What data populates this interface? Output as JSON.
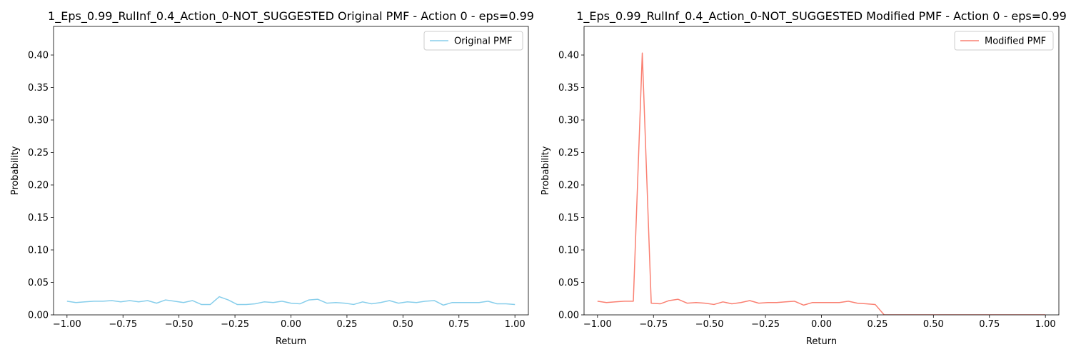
{
  "chart_data": [
    {
      "type": "line",
      "title": "1_Eps_0.99_RulInf_0.4_Action_0-NOT_SUGGESTED Original PMF - Action 0 - eps=0.99",
      "xlabel": "Return",
      "ylabel": "Probability",
      "xlim": [
        -1.06,
        1.06
      ],
      "ylim": [
        0,
        0.444
      ],
      "xticks": [
        -1.0,
        -0.75,
        -0.5,
        -0.25,
        0.0,
        0.25,
        0.5,
        0.75,
        1.0
      ],
      "xtick_labels": [
        "−1.00",
        "−0.75",
        "−0.50",
        "−0.25",
        "0.00",
        "0.25",
        "0.50",
        "0.75",
        "1.00"
      ],
      "yticks": [
        0.0,
        0.05,
        0.1,
        0.15,
        0.2,
        0.25,
        0.3,
        0.35,
        0.4
      ],
      "ytick_labels": [
        "0.00",
        "0.05",
        "0.10",
        "0.15",
        "0.20",
        "0.25",
        "0.30",
        "0.35",
        "0.40"
      ],
      "legend_position": "top-right",
      "series": [
        {
          "name": "Original PMF",
          "color": "#87ceeb",
          "x": [
            -1.0,
            -0.96,
            -0.92,
            -0.88,
            -0.84,
            -0.8,
            -0.76,
            -0.72,
            -0.68,
            -0.64,
            -0.6,
            -0.56,
            -0.52,
            -0.48,
            -0.44,
            -0.4,
            -0.36,
            -0.32,
            -0.28,
            -0.24,
            -0.2,
            -0.16,
            -0.12,
            -0.08,
            -0.04,
            0.0,
            0.04,
            0.08,
            0.12,
            0.16,
            0.2,
            0.24,
            0.28,
            0.32,
            0.36,
            0.4,
            0.44,
            0.48,
            0.52,
            0.56,
            0.6,
            0.64,
            0.68,
            0.72,
            0.76,
            0.8,
            0.84,
            0.88,
            0.92,
            0.96,
            1.0
          ],
          "values": [
            0.021,
            0.019,
            0.02,
            0.021,
            0.021,
            0.022,
            0.02,
            0.022,
            0.02,
            0.022,
            0.018,
            0.023,
            0.021,
            0.019,
            0.022,
            0.016,
            0.016,
            0.028,
            0.023,
            0.016,
            0.016,
            0.017,
            0.02,
            0.019,
            0.021,
            0.018,
            0.017,
            0.023,
            0.024,
            0.018,
            0.019,
            0.018,
            0.016,
            0.02,
            0.017,
            0.019,
            0.022,
            0.018,
            0.02,
            0.019,
            0.021,
            0.022,
            0.015,
            0.019,
            0.019,
            0.019,
            0.019,
            0.021,
            0.017,
            0.017,
            0.016
          ]
        }
      ]
    },
    {
      "type": "line",
      "title": "1_Eps_0.99_RulInf_0.4_Action_0-NOT_SUGGESTED Modified PMF - Action 0 - eps=0.99",
      "xlabel": "Return",
      "ylabel": "Probability",
      "xlim": [
        -1.06,
        1.06
      ],
      "ylim": [
        0,
        0.444
      ],
      "xticks": [
        -1.0,
        -0.75,
        -0.5,
        -0.25,
        0.0,
        0.25,
        0.5,
        0.75,
        1.0
      ],
      "xtick_labels": [
        "−1.00",
        "−0.75",
        "−0.50",
        "−0.25",
        "0.00",
        "0.25",
        "0.50",
        "0.75",
        "1.00"
      ],
      "yticks": [
        0.0,
        0.05,
        0.1,
        0.15,
        0.2,
        0.25,
        0.3,
        0.35,
        0.4
      ],
      "ytick_labels": [
        "0.00",
        "0.05",
        "0.10",
        "0.15",
        "0.20",
        "0.25",
        "0.30",
        "0.35",
        "0.40"
      ],
      "legend_position": "top-right",
      "series": [
        {
          "name": "Modified PMF",
          "color": "#fa8072",
          "x": [
            -1.0,
            -0.96,
            -0.92,
            -0.88,
            -0.84,
            -0.8,
            -0.76,
            -0.72,
            -0.68,
            -0.64,
            -0.6,
            -0.56,
            -0.52,
            -0.48,
            -0.44,
            -0.4,
            -0.36,
            -0.32,
            -0.28,
            -0.24,
            -0.2,
            -0.16,
            -0.12,
            -0.08,
            -0.04,
            0.0,
            0.04,
            0.08,
            0.12,
            0.16,
            0.2,
            0.24,
            0.28,
            0.32,
            0.36,
            0.4,
            0.44,
            0.48,
            0.52,
            0.56,
            0.6,
            0.64,
            0.68,
            0.72,
            0.76,
            0.8,
            0.84,
            0.88,
            0.92,
            0.96,
            1.0
          ],
          "values": [
            0.021,
            0.019,
            0.02,
            0.021,
            0.021,
            0.403,
            0.018,
            0.017,
            0.022,
            0.024,
            0.018,
            0.019,
            0.018,
            0.016,
            0.02,
            0.017,
            0.019,
            0.022,
            0.018,
            0.019,
            0.019,
            0.02,
            0.021,
            0.015,
            0.019,
            0.019,
            0.019,
            0.019,
            0.021,
            0.018,
            0.017,
            0.016,
            0.0,
            0.0,
            0.0,
            0.0,
            0.0,
            0.0,
            0.0,
            0.0,
            0.0,
            0.0,
            0.0,
            0.0,
            0.0,
            0.0,
            0.0,
            0.0,
            0.0,
            0.0,
            0.0
          ]
        }
      ]
    }
  ]
}
